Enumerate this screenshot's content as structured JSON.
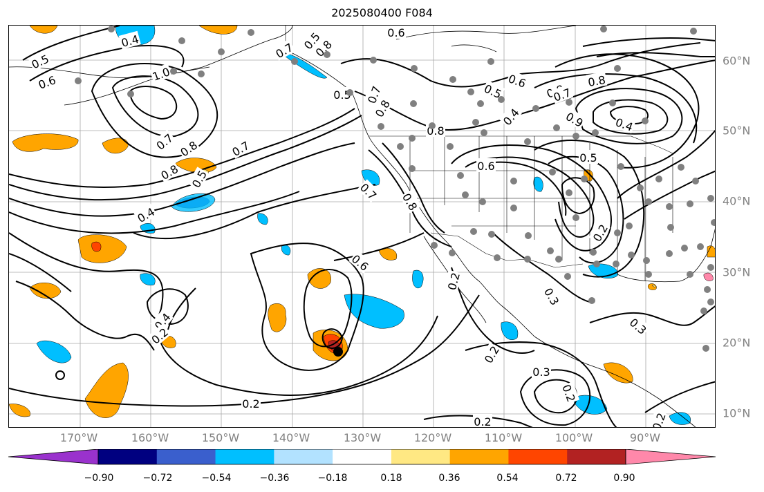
{
  "title": "2025080400 F084",
  "map": {
    "projection": "lat-lon",
    "lon_range_deg": [
      -180,
      -80
    ],
    "lat_range_deg": [
      8,
      65
    ]
  },
  "longitude_labels": [
    "170°W",
    "160°W",
    "150°W",
    "140°W",
    "130°W",
    "120°W",
    "110°W",
    "100°W",
    "90°W"
  ],
  "latitude_labels": [
    "60°N",
    "50°N",
    "40°N",
    "30°N",
    "20°N",
    "10°N"
  ],
  "contours": {
    "color": "#000000",
    "labels": [
      "0.5",
      "0.6",
      "0.4",
      "1.0",
      "0.7",
      "0.8",
      "0.7",
      "0.8",
      "0.5",
      "0.4",
      "0.6",
      "0.7",
      "0.8",
      "0.5",
      "0.6",
      "0.8",
      "0.9",
      "0.4",
      "0.7",
      "0.8",
      "0.5",
      "0.4",
      "0.8",
      "0.6",
      "0.5",
      "0.7",
      "0.8",
      "0.2",
      "0.3",
      "0.2",
      "0.3",
      "0.2",
      "0.3",
      "0.2",
      "0.2",
      "0.4",
      "0.2",
      "0.2",
      "0.6",
      "0.5",
      "0.7",
      "0.8",
      "0.2"
    ]
  },
  "shading_colors": {
    "purple": "#9a32cd",
    "navy": "#000080",
    "royal": "#3a5fcd",
    "sky": "#00bfff",
    "lightblue": "#b2e2ff",
    "white": "#ffffff",
    "lightyellow": "#ffe883",
    "orange": "#ffa500",
    "orangered": "#ff4500",
    "firebrick": "#b22222",
    "pink": "#ff88aa"
  },
  "colorbar": {
    "tick_labels": [
      "−0.90",
      "−0.72",
      "−0.54",
      "−0.36",
      "−0.18",
      "0.18",
      "0.36",
      "0.54",
      "0.72",
      "0.90"
    ],
    "colors": [
      "#9a32cd",
      "#000080",
      "#3a5fcd",
      "#00bfff",
      "#b2e2ff",
      "#ffffff",
      "#ffe883",
      "#ffa500",
      "#ff4500",
      "#b22222",
      "#ff88aa"
    ]
  },
  "stations_color": "#808080",
  "grid_color": "#808080"
}
